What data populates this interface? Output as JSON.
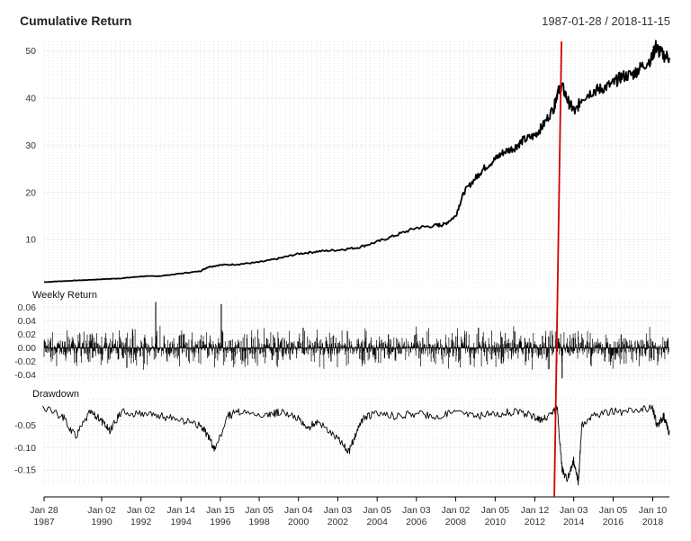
{
  "header": {
    "title": "Cumulative Return",
    "date_range": "1987-01-28 / 2018-11-15"
  },
  "colors": {
    "series": "#000000",
    "marker_line": "#d00000",
    "grid": "#c8c8c8",
    "tick_text": "#333333"
  },
  "chart_data": [
    {
      "type": "line",
      "title": "Cumulative Return",
      "x_range": [
        "1987-01-28",
        "2018-11-15"
      ],
      "ylim": [
        0.5,
        52
      ],
      "y_ticks": [
        10,
        20,
        30,
        40,
        50
      ],
      "y_tick_labels": [
        "10",
        "20",
        "30",
        "40",
        "50"
      ],
      "grid": true,
      "series": [
        {
          "x": [
            "1987-01-28",
            "1988-01",
            "1989-01",
            "1990-01",
            "1991-01",
            "1992-01",
            "1993-01",
            "1994-01",
            "1995-01",
            "1995-06",
            "1996-01",
            "1997-01",
            "1998-01",
            "1999-01",
            "2000-01",
            "2001-01",
            "2002-01",
            "2003-01",
            "2004-01",
            "2005-01",
            "2006-01",
            "2007-01",
            "2007-06",
            "2008-01",
            "2008-06",
            "2009-01",
            "2009-06",
            "2010-01",
            "2010-06",
            "2011-01",
            "2011-06",
            "2012-01",
            "2012-06",
            "2013-01",
            "2013-03",
            "2013-06",
            "2013-10",
            "2014-02",
            "2014-06",
            "2015-01",
            "2015-06",
            "2016-01",
            "2016-06",
            "2017-01",
            "2017-06",
            "2018-01",
            "2018-03",
            "2018-06",
            "2018-11-15"
          ],
          "values": [
            1.0,
            1.2,
            1.4,
            1.6,
            1.8,
            2.2,
            2.3,
            2.8,
            3.3,
            4.2,
            4.6,
            4.8,
            5.2,
            6.0,
            7.0,
            7.5,
            7.8,
            8.3,
            9.5,
            11.0,
            12.5,
            13.0,
            13.2,
            15.0,
            20.0,
            23.0,
            25.0,
            27.0,
            28.5,
            29.5,
            31.0,
            32.0,
            34.0,
            38.0,
            41.0,
            42.5,
            39.0,
            37.0,
            40.0,
            41.5,
            42.0,
            43.0,
            44.5,
            45.0,
            46.5,
            48.5,
            51.0,
            49.5,
            48.5
          ]
        }
      ]
    },
    {
      "type": "bar",
      "title": "Weekly Return",
      "x_range": [
        "1987-01-28",
        "2018-11-15"
      ],
      "ylim": [
        -0.05,
        0.07
      ],
      "y_ticks": [
        -0.04,
        -0.02,
        0.0,
        0.02,
        0.04,
        0.06
      ],
      "y_tick_labels": [
        "-0.04",
        "-0.02",
        "0.00",
        "0.02",
        "0.04",
        "0.06"
      ],
      "series": [
        {
          "x": [
            "1987-02",
            "1988-03",
            "1989-06",
            "1991-04",
            "1992-10",
            "1993-05",
            "1994-03",
            "1995-01",
            "1996-02",
            "1998-09",
            "2000-04",
            "2001-09",
            "2002-07",
            "2004-08",
            "2006-05",
            "2008-10",
            "2009-03",
            "2010-05",
            "2011-08",
            "2012-06",
            "2013-06",
            "2014-01",
            "2015-08",
            "2016-06",
            "2018-02",
            "2018-10"
          ],
          "values": [
            0.012,
            -0.01,
            0.02,
            0.015,
            0.068,
            -0.02,
            0.02,
            0.012,
            0.065,
            -0.018,
            0.03,
            -0.02,
            0.025,
            0.02,
            0.015,
            -0.025,
            0.03,
            -0.018,
            -0.02,
            0.018,
            -0.045,
            0.015,
            -0.02,
            0.02,
            -0.018,
            0.01
          ]
        }
      ]
    },
    {
      "type": "area",
      "title": "Drawdown",
      "x_range": [
        "1987-01-28",
        "2018-11-15"
      ],
      "ylim": [
        -0.18,
        0.01
      ],
      "y_ticks": [
        -0.15,
        -0.1,
        -0.05
      ],
      "y_tick_labels": [
        "-0.15",
        "-0.10",
        "-0.05"
      ],
      "series": [
        {
          "x": [
            "1987-01",
            "1988-01",
            "1988-09",
            "1989-06",
            "1990-01",
            "1990-06",
            "1991-01",
            "1992-01",
            "1993-01",
            "1994-01",
            "1995-01",
            "1995-06",
            "1995-10",
            "1996-06",
            "1997-01",
            "1998-06",
            "1999-01",
            "2000-01",
            "2000-06",
            "2001-01",
            "2002-01",
            "2002-08",
            "2003-01",
            "2003-06",
            "2004-01",
            "2005-01",
            "2006-01",
            "2007-01",
            "2008-01",
            "2009-01",
            "2010-01",
            "2011-01",
            "2012-01",
            "2012-06",
            "2013-01",
            "2013-03",
            "2013-06",
            "2013-09",
            "2014-01",
            "2014-04",
            "2014-06",
            "2015-01",
            "2016-01",
            "2017-01",
            "2018-01",
            "2018-04",
            "2018-08",
            "2018-11-15"
          ],
          "values": [
            0,
            -0.02,
            -0.065,
            -0.01,
            -0.03,
            -0.055,
            -0.01,
            -0.015,
            -0.02,
            -0.03,
            -0.04,
            -0.065,
            -0.095,
            -0.02,
            -0.01,
            -0.02,
            -0.01,
            -0.025,
            -0.05,
            -0.03,
            -0.07,
            -0.1,
            -0.05,
            -0.02,
            -0.015,
            -0.02,
            -0.015,
            -0.02,
            -0.01,
            -0.02,
            -0.015,
            -0.01,
            -0.02,
            -0.03,
            -0.01,
            0,
            -0.14,
            -0.16,
            -0.12,
            -0.17,
            -0.04,
            -0.02,
            -0.01,
            -0.01,
            0,
            -0.04,
            -0.02,
            -0.06
          ]
        }
      ]
    }
  ],
  "x_axis": {
    "ticks": [
      {
        "date": "1987-01-28",
        "line1": "Jan 28",
        "line2": "1987"
      },
      {
        "date": "1990-01-02",
        "line1": "Jan 02",
        "line2": "1990"
      },
      {
        "date": "1992-01-02",
        "line1": "Jan 02",
        "line2": "1992"
      },
      {
        "date": "1994-01-14",
        "line1": "Jan 14",
        "line2": "1994"
      },
      {
        "date": "1996-01-15",
        "line1": "Jan 15",
        "line2": "1996"
      },
      {
        "date": "1998-01-05",
        "line1": "Jan 05",
        "line2": "1998"
      },
      {
        "date": "2000-01-04",
        "line1": "Jan 04",
        "line2": "2000"
      },
      {
        "date": "2002-01-03",
        "line1": "Jan 03",
        "line2": "2002"
      },
      {
        "date": "2004-01-05",
        "line1": "Jan 05",
        "line2": "2004"
      },
      {
        "date": "2006-01-03",
        "line1": "Jan 03",
        "line2": "2006"
      },
      {
        "date": "2008-01-02",
        "line1": "Jan 02",
        "line2": "2008"
      },
      {
        "date": "2010-01-05",
        "line1": "Jan 05",
        "line2": "2010"
      },
      {
        "date": "2012-01-12",
        "line1": "Jan 12",
        "line2": "2012"
      },
      {
        "date": "2014-01-03",
        "line1": "Jan 03",
        "line2": "2014"
      },
      {
        "date": "2016-01-05",
        "line1": "Jan 05",
        "line2": "2016"
      },
      {
        "date": "2018-01-10",
        "line1": "Jan 10",
        "line2": "2018"
      }
    ]
  },
  "event_marker": {
    "date": "2013-03-15"
  }
}
